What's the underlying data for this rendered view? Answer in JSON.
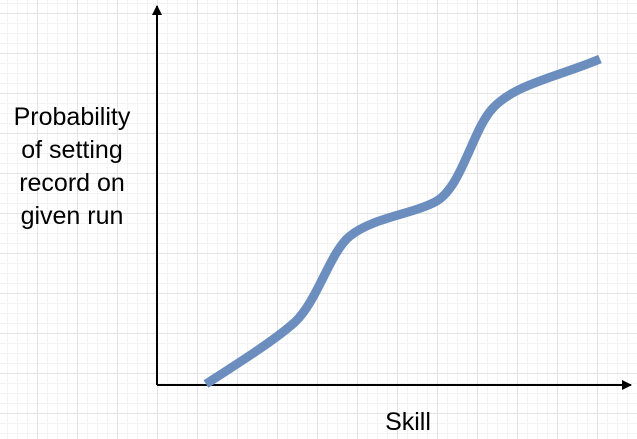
{
  "axes": {
    "y_label_lines": [
      "Probability",
      "of setting",
      "record on",
      "given run"
    ],
    "x_label": "Skill",
    "axis_color": "#000000"
  },
  "curve": {
    "color": "#6c8ebf"
  }
}
